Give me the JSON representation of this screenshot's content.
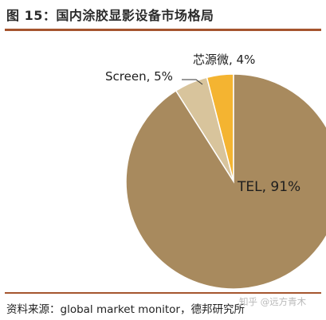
{
  "figure": {
    "title": "图 15：国内涂胶显影设备市场格局",
    "source": "资料来源：global market monitor，德邦研究所",
    "watermark": "知乎 @远方青木"
  },
  "chart_data": {
    "type": "pie",
    "title": "",
    "start_angle_deg": 0,
    "direction": "counterclockwise-from-top",
    "slices": [
      {
        "label": "芯源微, 4%",
        "value": 4,
        "color": "#f4b431"
      },
      {
        "label": "Screen, 5%",
        "value": 5,
        "color": "#d8c49c"
      },
      {
        "label": "TEL, 91%",
        "value": 91,
        "color": "#a88a5e"
      }
    ],
    "legend": "none"
  },
  "colors": {
    "rule": "#a5552e",
    "slice_border": "#ffffff",
    "leader_line": "#333333"
  }
}
